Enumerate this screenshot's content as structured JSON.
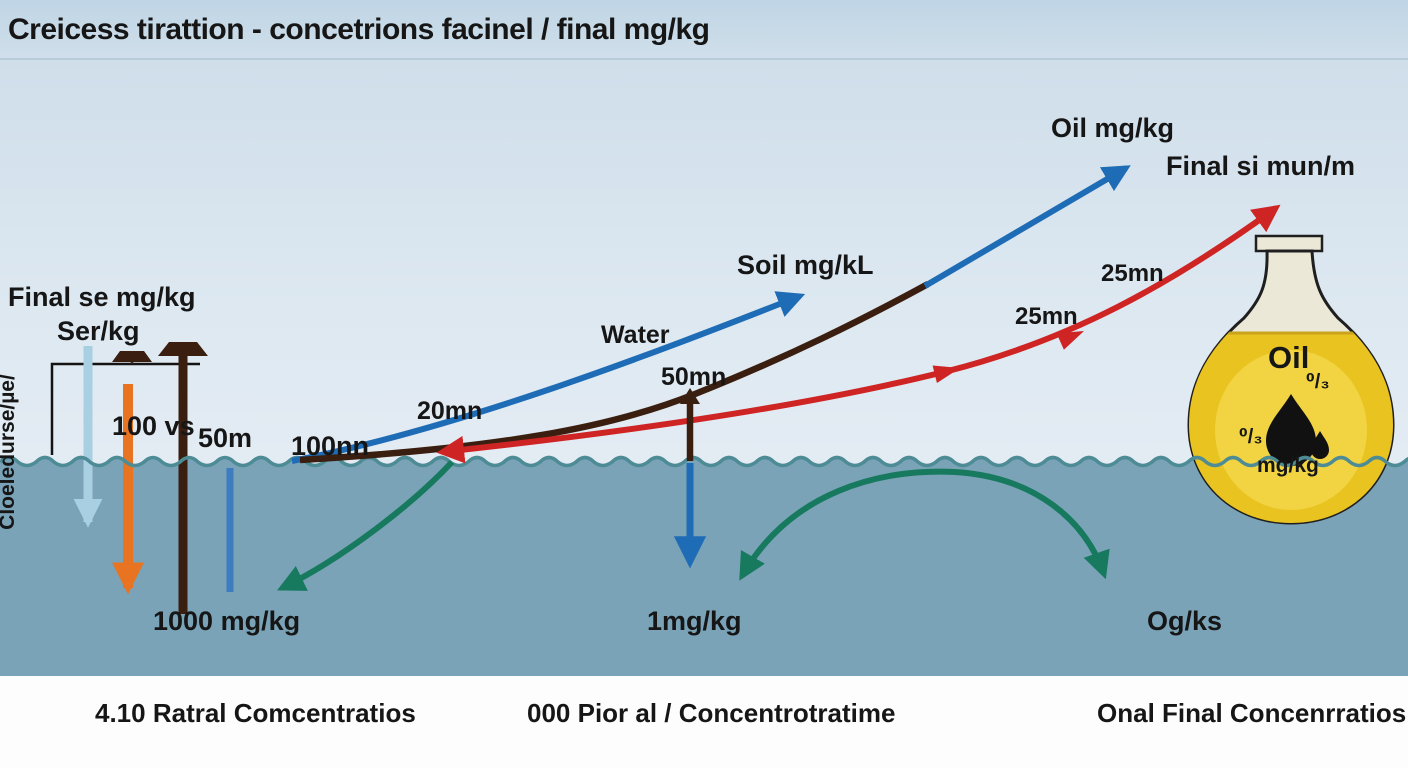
{
  "title": "Creicess tirattion - concetrions facinel /  final  mg/kg",
  "axis_label": "Cloeledurse/µe/",
  "left_labels": {
    "final_se": "Final se mg/kg",
    "ser": "Ser/kg",
    "vs100": "100 vs",
    "m50": "50m",
    "m100": "100nn"
  },
  "curve_labels": {
    "mn20": "20mn",
    "water": "Water",
    "mn50": "50mn",
    "soil": "Soil mg/kL",
    "oil": "Oil mg/kg",
    "final_si": "Final si mun/m",
    "mn25_upper": "25mn",
    "mn25_lower": "25mn"
  },
  "underwater_labels": {
    "left": "1000 mg/kg",
    "middle": "1mg/kg",
    "right": "Og/ks"
  },
  "flask": {
    "name": "Oil",
    "frac_right": "⁰/₃",
    "frac_left": "⁰/₃",
    "unit": "mg/kg"
  },
  "captions": [
    {
      "label": "4.10 Ratral Comcentratios"
    },
    {
      "label": "000 Pior al / Concentrotratime"
    },
    {
      "label": "Onal Final Concenrratios"
    }
  ],
  "icons": [
    "umbrella-icon-small",
    "umbrella-icon-large",
    "flask-icon",
    "oil-droplet-icon",
    "oil-droplet-icon-small"
  ],
  "colors": {
    "blue": "#1e6cb5",
    "red": "#cf2424",
    "green": "#177a5e",
    "brown": "#3a1f10",
    "orange": "#e87422",
    "lightblue": "#a9cfe2",
    "midblue": "#3e7cc0",
    "water": "#7aa3b8",
    "waveline": "#4d8b95",
    "flaskyellow": "#e9c320",
    "flaskyellowlight": "#f3d74a",
    "flaskcream": "#ece8d8",
    "ink": "#161616"
  }
}
